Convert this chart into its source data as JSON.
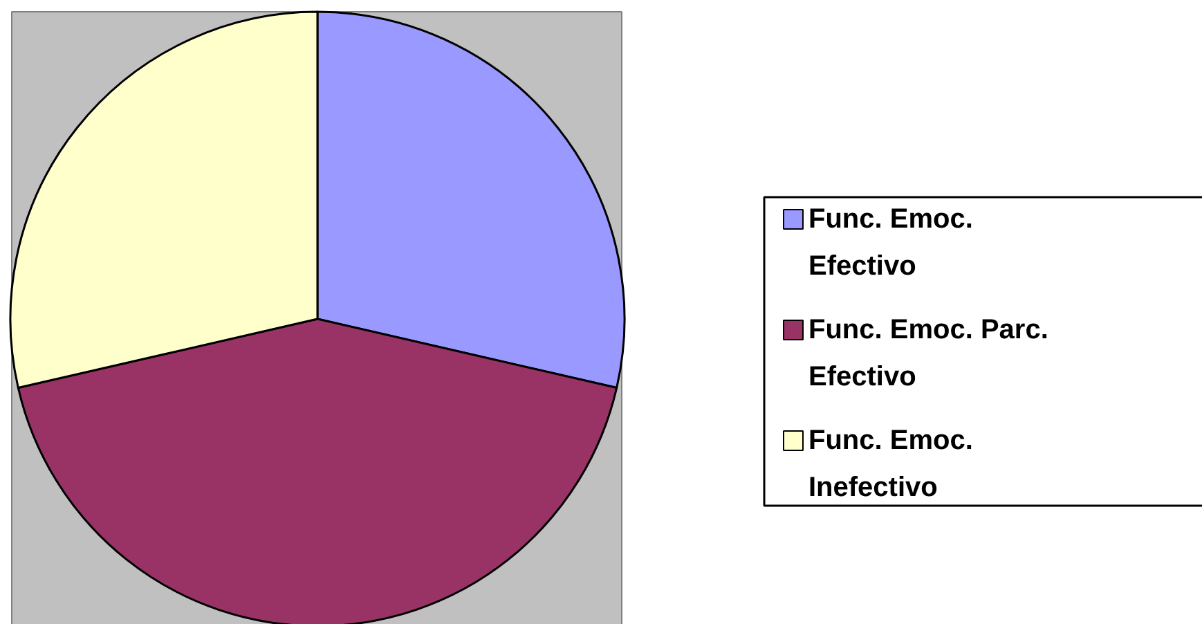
{
  "chart_data": {
    "type": "pie",
    "categories": [
      "Func. Emoc. Efectivo",
      "Func. Emoc. Parc. Efectivo",
      "Func. Emoc. Inefectivo"
    ],
    "values": [
      28.6,
      42.8,
      28.6
    ],
    "colors": [
      "#9999ff",
      "#993366",
      "#ffffcc"
    ],
    "legend": "right"
  }
}
